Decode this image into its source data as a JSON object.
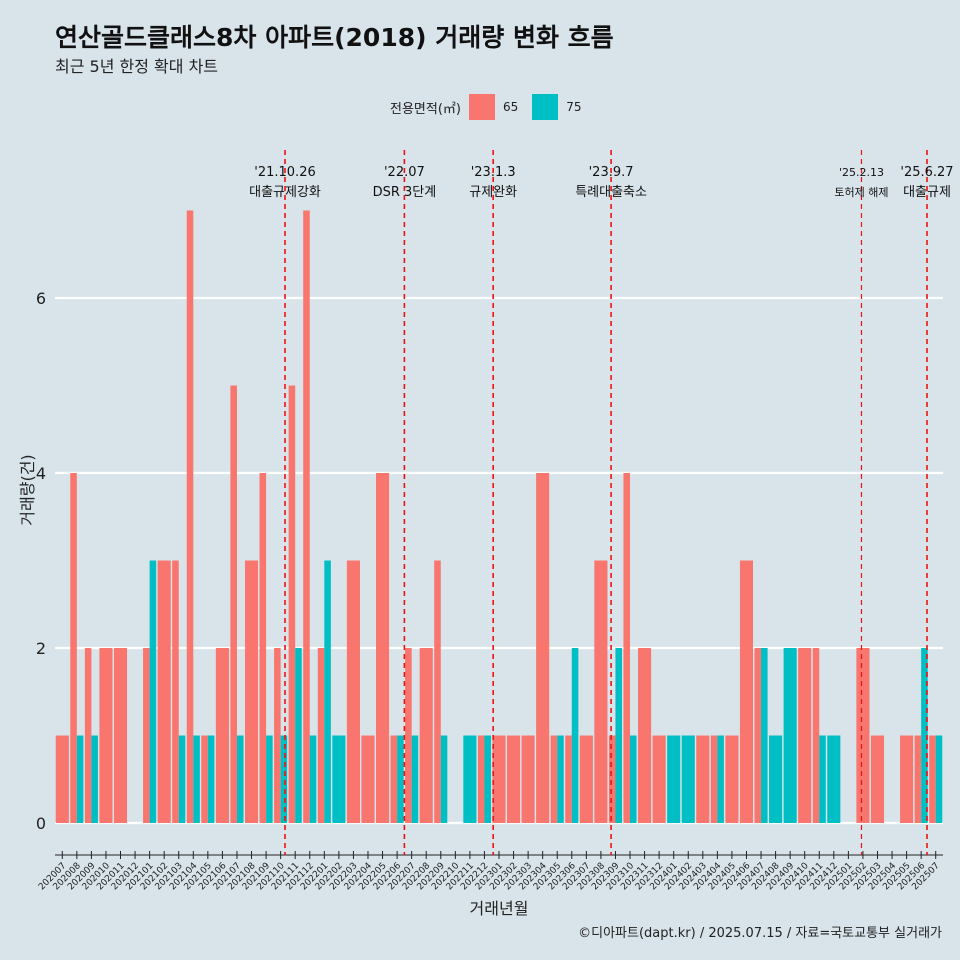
{
  "title": "연산골드클래스8차 아파트(2018) 거래량 변화 흐름",
  "subtitle": "최근 5년 한정 확대 차트",
  "caption": "©디아파트(dapt.kr) / 2025.07.15 / 자료=국토교통부 실거래가",
  "legend": {
    "title": "전용면적(㎡)",
    "items": [
      {
        "label": "65",
        "color": "#f8766d"
      },
      {
        "label": "75",
        "color": "#00bfc4"
      }
    ]
  },
  "chart_data": {
    "type": "bar",
    "title": "연산골드클래스8차 아파트(2018) 거래량 변화 흐름",
    "xlabel": "거래년월",
    "ylabel": "거래량(건)",
    "ylim": [
      0,
      7.5
    ],
    "yticks": [
      0,
      2,
      4,
      6
    ],
    "categories": [
      "202007",
      "202008",
      "202009",
      "202010",
      "202011",
      "202012",
      "202101",
      "202102",
      "202103",
      "202104",
      "202105",
      "202106",
      "202107",
      "202108",
      "202109",
      "202110",
      "202111",
      "202112",
      "202201",
      "202202",
      "202203",
      "202204",
      "202205",
      "202206",
      "202207",
      "202208",
      "202209",
      "202210",
      "202211",
      "202212",
      "202301",
      "202302",
      "202303",
      "202304",
      "202305",
      "202306",
      "202307",
      "202308",
      "202309",
      "202310",
      "202311",
      "202312",
      "202401",
      "202402",
      "202403",
      "202404",
      "202405",
      "202406",
      "202407",
      "202408",
      "202409",
      "202410",
      "202411",
      "202412",
      "202501",
      "202502",
      "202503",
      "202504",
      "202505",
      "202506",
      "202507"
    ],
    "series": [
      {
        "name": "65",
        "color": "#f8766d",
        "values": [
          1,
          4,
          2,
          2,
          2,
          0,
          2,
          3,
          3,
          7,
          1,
          2,
          5,
          3,
          4,
          2,
          5,
          7,
          2,
          0,
          3,
          1,
          4,
          1,
          2,
          2,
          3,
          0,
          0,
          1,
          1,
          1,
          1,
          4,
          1,
          1,
          1,
          3,
          1,
          4,
          2,
          1,
          0,
          0,
          1,
          1,
          1,
          3,
          2,
          0,
          0,
          2,
          2,
          0,
          0,
          2,
          1,
          0,
          1,
          1,
          1
        ]
      },
      {
        "name": "75",
        "color": "#00bfc4",
        "values": [
          0,
          1,
          1,
          0,
          0,
          0,
          3,
          0,
          1,
          1,
          1,
          0,
          1,
          0,
          1,
          1,
          2,
          1,
          3,
          1,
          0,
          0,
          0,
          1,
          1,
          0,
          1,
          0,
          1,
          1,
          0,
          0,
          0,
          0,
          1,
          2,
          0,
          0,
          2,
          1,
          0,
          0,
          1,
          1,
          0,
          1,
          0,
          0,
          2,
          1,
          2,
          0,
          1,
          1,
          0,
          0,
          0,
          0,
          0,
          2,
          1
        ]
      }
    ],
    "events": [
      {
        "date": "'21.10.26",
        "label": "대출규제강화",
        "month": "202110",
        "offset": 0.8
      },
      {
        "date": "'22.07",
        "label": "DSR 3단계",
        "month": "202207",
        "offset": 0.0
      },
      {
        "date": "'23.1.3",
        "label": "규제완화",
        "month": "202301",
        "offset": 0.1
      },
      {
        "date": "'23.9.7",
        "label": "특례대출축소",
        "month": "202309",
        "offset": 0.2
      },
      {
        "date": "'25.2.13",
        "label": "토허제 해제",
        "month": "202502",
        "offset": 0.4
      },
      {
        "date": "'25.6.27",
        "label": "대출규제",
        "month": "202506",
        "offset": 0.9
      }
    ]
  }
}
